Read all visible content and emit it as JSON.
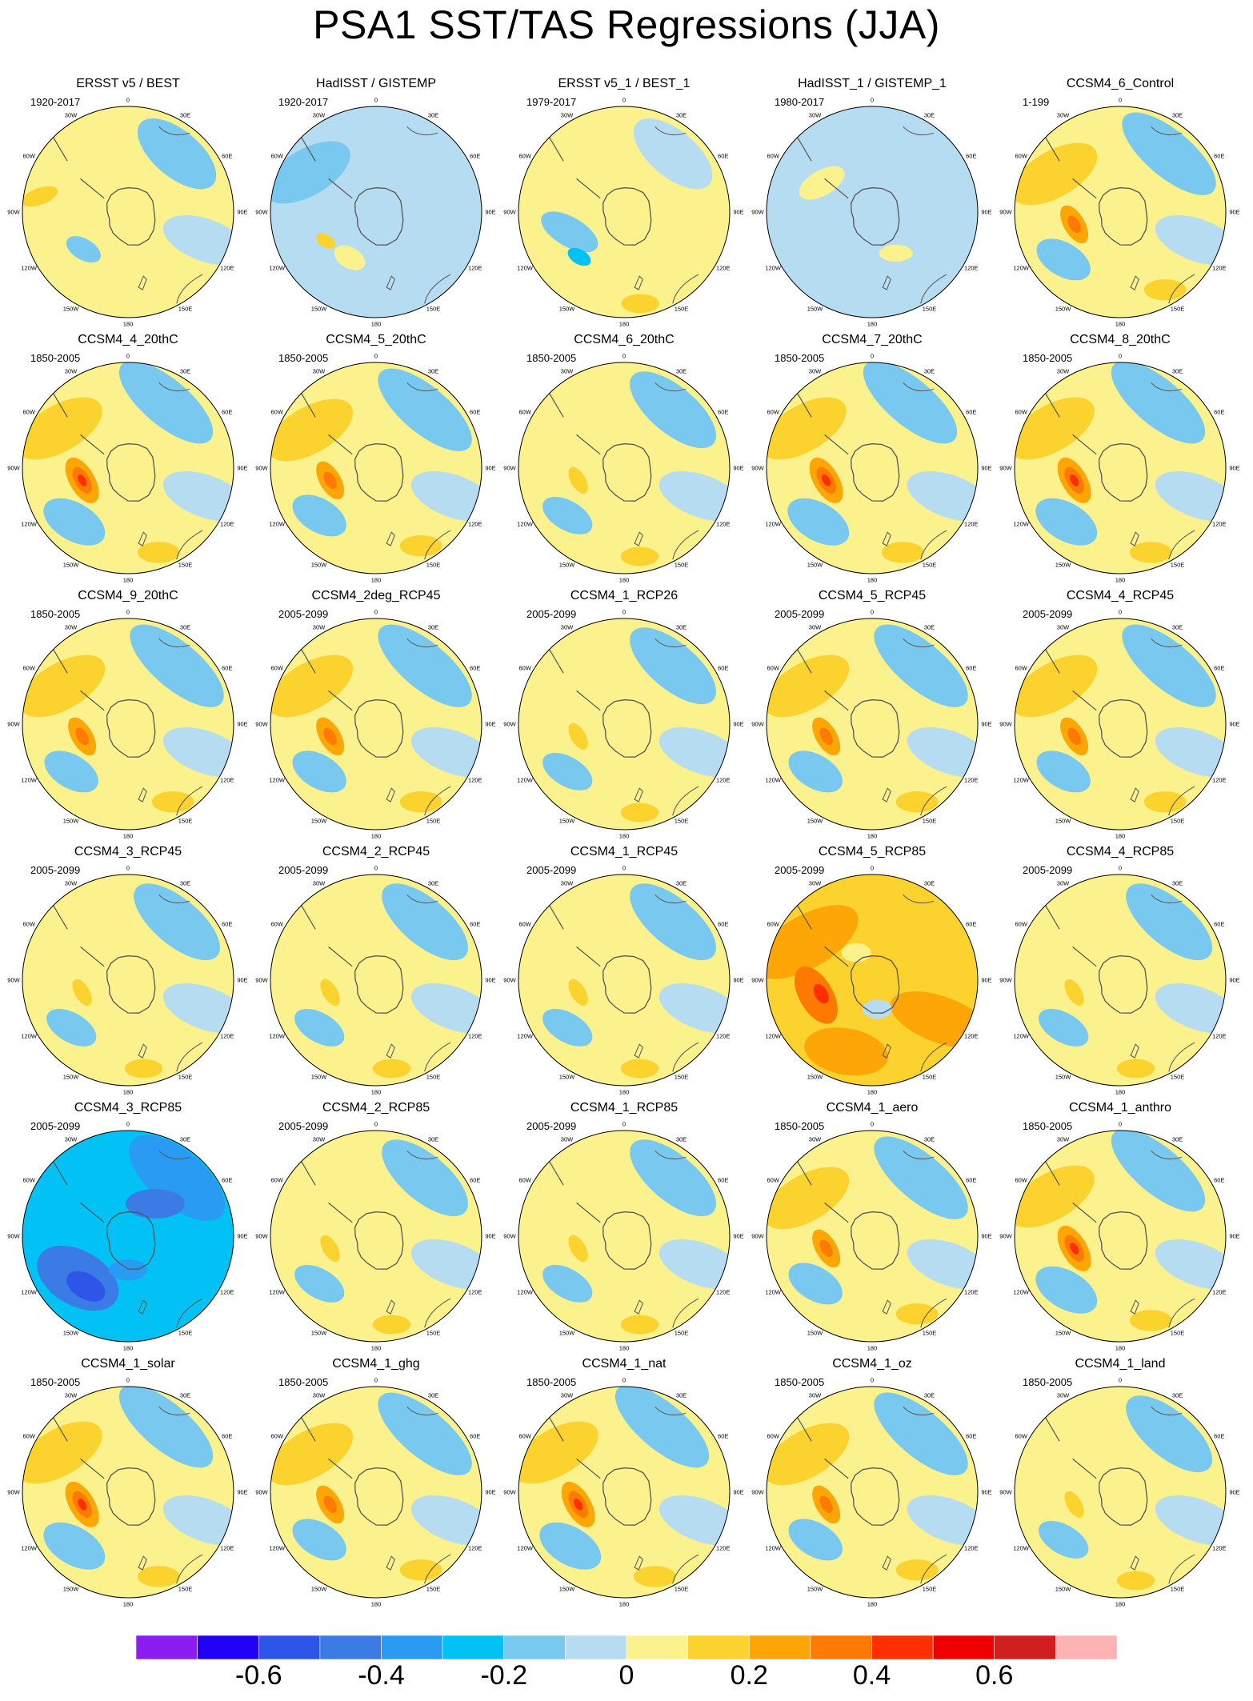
{
  "title": "PSA1 SST/TAS Regressions (JJA)",
  "chart_data": {
    "type": "heatmap",
    "projection": "south-polar-stereographic",
    "grid_layout": "6 rows x 5 columns",
    "longitude_labels": [
      "0",
      "30E",
      "60E",
      "90E",
      "120E",
      "150E",
      "180",
      "150W",
      "120W",
      "90W",
      "60W",
      "30W"
    ],
    "panels": [
      {
        "name": "ERSST v5 / BEST",
        "period": "1920-2017",
        "pattern": "obs"
      },
      {
        "name": "HadISST / GISTEMP",
        "period": "1920-2017",
        "pattern": "obs_weak"
      },
      {
        "name": "ERSST v5_1 / BEST_1",
        "period": "1979-2017",
        "pattern": "obs_recent"
      },
      {
        "name": "HadISST_1 / GISTEMP_1",
        "period": "1980-2017",
        "pattern": "obs_noisy"
      },
      {
        "name": "CCSM4_6_Control",
        "period": "1-199",
        "pattern": "model"
      },
      {
        "name": "CCSM4_4_20thC",
        "period": "1850-2005",
        "pattern": "model_strong"
      },
      {
        "name": "CCSM4_5_20thC",
        "period": "1850-2005",
        "pattern": "model"
      },
      {
        "name": "CCSM4_6_20thC",
        "period": "1850-2005",
        "pattern": "model_weak"
      },
      {
        "name": "CCSM4_7_20thC",
        "period": "1850-2005",
        "pattern": "model_strong"
      },
      {
        "name": "CCSM4_8_20thC",
        "period": "1850-2005",
        "pattern": "model_strong"
      },
      {
        "name": "CCSM4_9_20thC",
        "period": "1850-2005",
        "pattern": "model"
      },
      {
        "name": "CCSM4_2deg_RCP45",
        "period": "2005-2099",
        "pattern": "model"
      },
      {
        "name": "CCSM4_1_RCP26",
        "period": "2005-2099",
        "pattern": "model_weak"
      },
      {
        "name": "CCSM4_5_RCP45",
        "period": "2005-2099",
        "pattern": "model"
      },
      {
        "name": "CCSM4_4_RCP45",
        "period": "2005-2099",
        "pattern": "model"
      },
      {
        "name": "CCSM4_3_RCP45",
        "period": "2005-2099",
        "pattern": "model_weak"
      },
      {
        "name": "CCSM4_2_RCP45",
        "period": "2005-2099",
        "pattern": "model_weak"
      },
      {
        "name": "CCSM4_1_RCP45",
        "period": "2005-2099",
        "pattern": "model_weak"
      },
      {
        "name": "CCSM4_5_RCP85",
        "period": "2005-2099",
        "pattern": "warm"
      },
      {
        "name": "CCSM4_4_RCP85",
        "period": "2005-2099",
        "pattern": "model_weak"
      },
      {
        "name": "CCSM4_3_RCP85",
        "period": "2005-2099",
        "pattern": "cool"
      },
      {
        "name": "CCSM4_2_RCP85",
        "period": "2005-2099",
        "pattern": "model_weak"
      },
      {
        "name": "CCSM4_1_RCP85",
        "period": "2005-2099",
        "pattern": "model_weak"
      },
      {
        "name": "CCSM4_1_aero",
        "period": "1850-2005",
        "pattern": "model"
      },
      {
        "name": "CCSM4_1_anthro",
        "period": "1850-2005",
        "pattern": "model_strong"
      },
      {
        "name": "CCSM4_1_solar",
        "period": "1850-2005",
        "pattern": "model_strong"
      },
      {
        "name": "CCSM4_1_ghg",
        "period": "1850-2005",
        "pattern": "model"
      },
      {
        "name": "CCSM4_1_nat",
        "period": "1850-2005",
        "pattern": "model_strong"
      },
      {
        "name": "CCSM4_1_oz",
        "period": "1850-2005",
        "pattern": "model"
      },
      {
        "name": "CCSM4_1_land",
        "period": "1850-2005",
        "pattern": "model_weak"
      }
    ],
    "colorbar": {
      "levels": [
        -0.7,
        -0.6,
        -0.5,
        -0.4,
        -0.3,
        -0.2,
        -0.1,
        0,
        0.1,
        0.2,
        0.3,
        0.4,
        0.5,
        0.6,
        0.7
      ],
      "colors": [
        "#8b1cf2",
        "#2200f8",
        "#2d56e8",
        "#3a7be6",
        "#2a9bf2",
        "#02c1f4",
        "#78c8ef",
        "#b6dcf1",
        "#fbf28e",
        "#fcd32e",
        "#fda606",
        "#ff7a02",
        "#ff2f00",
        "#ef0001",
        "#d11f1f",
        "#fdb3b3"
      ],
      "tick_labels": [
        "-0.6",
        "-0.4",
        "-0.2",
        "0",
        "0.2",
        "0.4",
        "0.6"
      ],
      "tick_values": [
        -0.6,
        -0.4,
        -0.2,
        0,
        0.2,
        0.4,
        0.6
      ]
    }
  }
}
